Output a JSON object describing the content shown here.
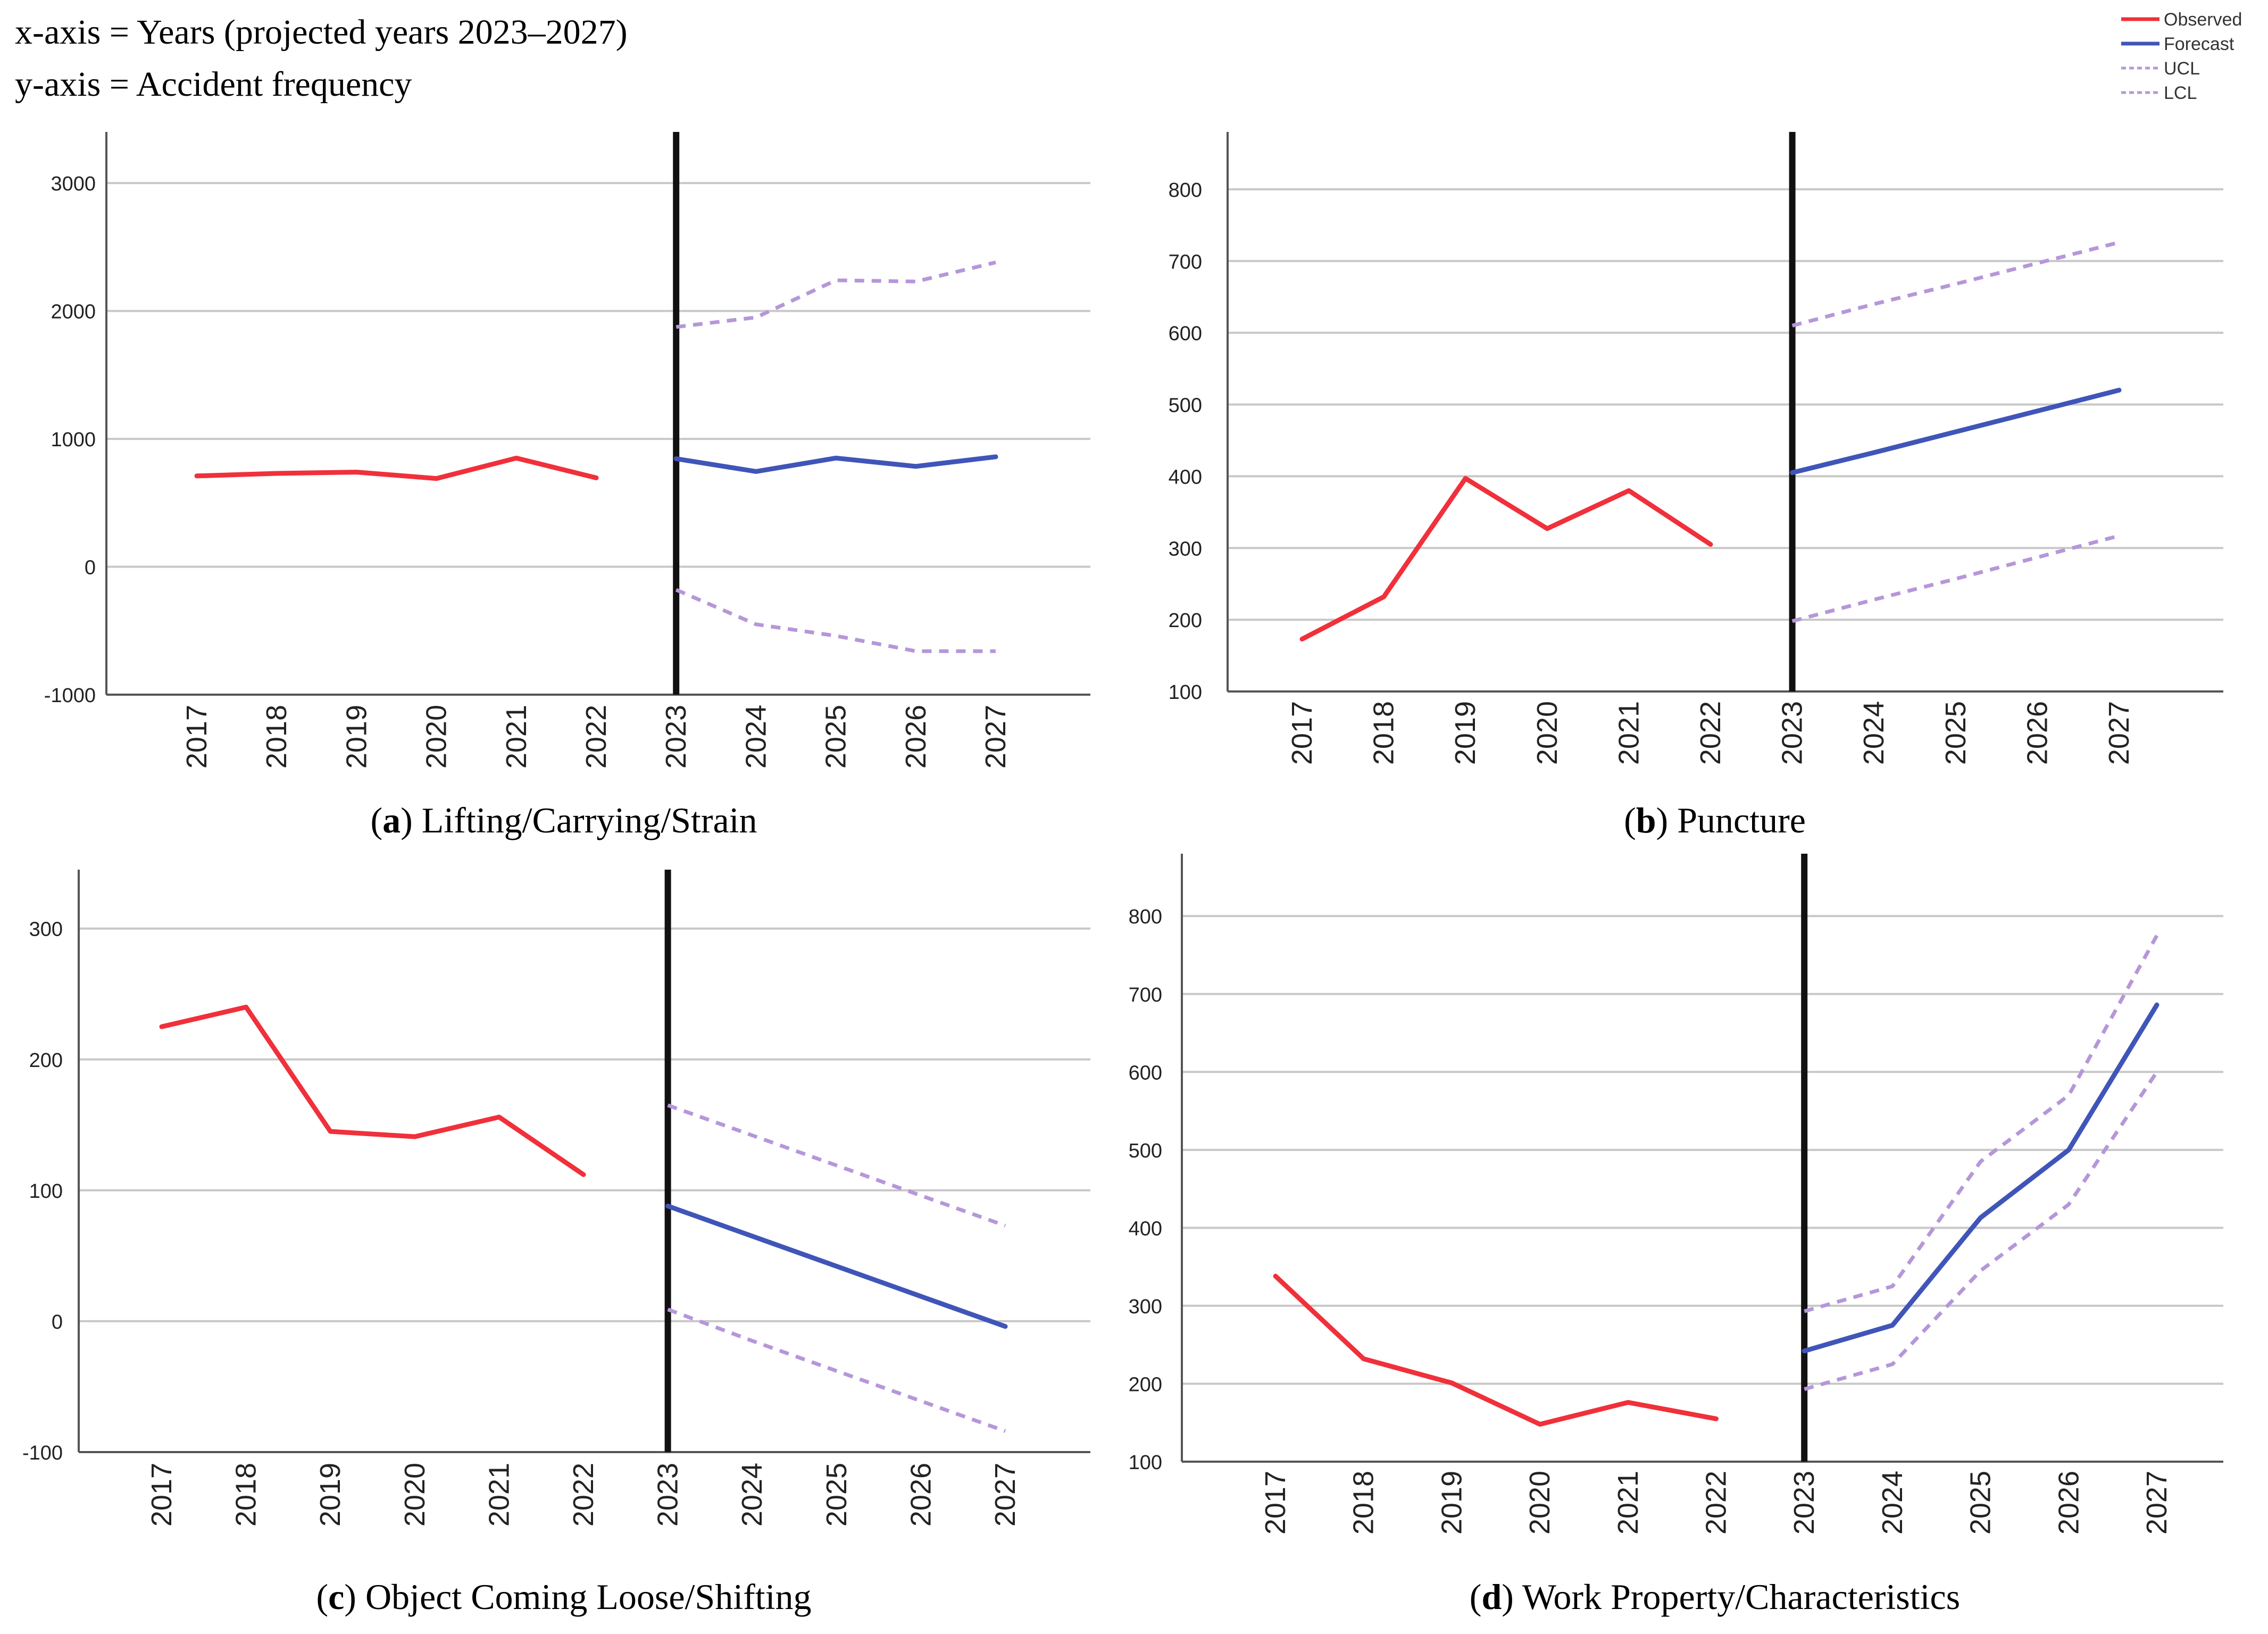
{
  "header": {
    "xaxis_note": "x-axis = Years (projected years 2023–2027)",
    "yaxis_note": "y-axis = Accident frequency"
  },
  "legend": {
    "placement": "top-right",
    "items": [
      {
        "label": "Observed",
        "color": "#f0303a",
        "style": "solid"
      },
      {
        "label": "Forecast",
        "color": "#4055b8",
        "style": "solid"
      },
      {
        "label": "UCL",
        "color": "#b597d9",
        "style": "dashed"
      },
      {
        "label": "LCL",
        "color": "#b597d9",
        "style": "dashed"
      }
    ]
  },
  "colors": {
    "observed": "#f0303a",
    "forecast": "#4055b8",
    "limits": "#b597d9",
    "divider": "#111111",
    "grid": "#c8c8c8",
    "axis": "#555555"
  },
  "chart_data": [
    {
      "type": "line",
      "caption_letter": "(a)",
      "caption_text": "Lifting/Carrying/Strain",
      "x": [
        "2017",
        "2018",
        "2019",
        "2020",
        "2021",
        "2022",
        "2023",
        "2024",
        "2025",
        "2026",
        "2027"
      ],
      "divider_at": "2023",
      "ylim": [
        -1000,
        3400
      ],
      "yticks": [
        -1000,
        0,
        1000,
        2000,
        3000
      ],
      "ytick_labels": [
        "-1000",
        "0",
        "1000",
        "2000",
        "3000"
      ],
      "grid": true,
      "series": [
        {
          "role": "observed",
          "x": [
            "2017",
            "2018",
            "2019",
            "2020",
            "2021",
            "2022"
          ],
          "values": [
            710,
            730,
            740,
            690,
            850,
            695
          ]
        },
        {
          "role": "forecast",
          "x": [
            "2023",
            "2024",
            "2025",
            "2026",
            "2027"
          ],
          "values": [
            845,
            745,
            850,
            785,
            860
          ]
        },
        {
          "role": "ucl",
          "x": [
            "2023",
            "2024",
            "2025",
            "2026",
            "2027"
          ],
          "values": [
            1875,
            1950,
            2240,
            2230,
            2380
          ]
        },
        {
          "role": "lcl",
          "x": [
            "2023",
            "2024",
            "2025",
            "2026",
            "2027"
          ],
          "values": [
            -180,
            -450,
            -540,
            -660,
            -660
          ]
        }
      ]
    },
    {
      "type": "line",
      "caption_letter": "(b)",
      "caption_text": "Puncture",
      "x": [
        "2017",
        "2018",
        "2019",
        "2020",
        "2021",
        "2022",
        "2023",
        "2024",
        "2025",
        "2026",
        "2027"
      ],
      "divider_at": "2023",
      "ylim": [
        100,
        880
      ],
      "yticks": [
        100,
        200,
        300,
        400,
        500,
        600,
        700,
        800
      ],
      "ytick_labels": [
        "100",
        "200",
        "300",
        "400",
        "500",
        "600",
        "700",
        "800"
      ],
      "grid": true,
      "series": [
        {
          "role": "observed",
          "x": [
            "2017",
            "2018",
            "2019",
            "2020",
            "2021",
            "2022"
          ],
          "values": [
            173,
            232,
            397,
            327,
            380,
            305
          ]
        },
        {
          "role": "forecast",
          "x": [
            "2023",
            "2024",
            "2025",
            "2026",
            "2027"
          ],
          "values": [
            405,
            433,
            462,
            491,
            520
          ]
        },
        {
          "role": "ucl",
          "x": [
            "2023",
            "2024",
            "2025",
            "2026",
            "2027"
          ],
          "values": [
            610,
            640,
            668,
            697,
            726
          ]
        },
        {
          "role": "lcl",
          "x": [
            "2023",
            "2024",
            "2025",
            "2026",
            "2027"
          ],
          "values": [
            198,
            228,
            257,
            287,
            317
          ]
        }
      ]
    },
    {
      "type": "line",
      "caption_letter": "(c)",
      "caption_text": "Object Coming Loose/Shifting",
      "x": [
        "2017",
        "2018",
        "2019",
        "2020",
        "2021",
        "2022",
        "2023",
        "2024",
        "2025",
        "2026",
        "2027"
      ],
      "divider_at": "2023",
      "ylim": [
        -100,
        345
      ],
      "yticks": [
        -100,
        0,
        100,
        200,
        300
      ],
      "ytick_labels": [
        "-100",
        "0",
        "100",
        "200",
        "300"
      ],
      "grid": true,
      "series": [
        {
          "role": "observed",
          "x": [
            "2017",
            "2018",
            "2019",
            "2020",
            "2021",
            "2022"
          ],
          "values": [
            225,
            240,
            145,
            141,
            156,
            112
          ]
        },
        {
          "role": "forecast",
          "x": [
            "2023",
            "2024",
            "2025",
            "2026",
            "2027"
          ],
          "values": [
            88,
            65,
            42,
            19,
            -4
          ]
        },
        {
          "role": "ucl",
          "x": [
            "2023",
            "2024",
            "2025",
            "2026",
            "2027"
          ],
          "values": [
            165,
            142,
            119,
            96,
            73
          ]
        },
        {
          "role": "lcl",
          "x": [
            "2023",
            "2024",
            "2025",
            "2026",
            "2027"
          ],
          "values": [
            9,
            -15,
            -38,
            -61,
            -84
          ]
        }
      ]
    },
    {
      "type": "line",
      "caption_letter": "(d)",
      "caption_text": "Work Property/Characteristics",
      "x": [
        "2017",
        "2018",
        "2019",
        "2020",
        "2021",
        "2022",
        "2023",
        "2024",
        "2025",
        "2026",
        "2027"
      ],
      "divider_at": "2023",
      "ylim": [
        100,
        880
      ],
      "yticks": [
        100,
        200,
        300,
        400,
        500,
        600,
        700,
        800
      ],
      "ytick_labels": [
        "100",
        "200",
        "300",
        "400",
        "500",
        "600",
        "700",
        "800"
      ],
      "grid": true,
      "series": [
        {
          "role": "observed",
          "x": [
            "2017",
            "2018",
            "2019",
            "2020",
            "2021",
            "2022"
          ],
          "values": [
            338,
            232,
            201,
            148,
            176,
            155
          ]
        },
        {
          "role": "forecast",
          "x": [
            "2023",
            "2024",
            "2025",
            "2026",
            "2027"
          ],
          "values": [
            242,
            275,
            413,
            500,
            686
          ]
        },
        {
          "role": "ucl",
          "x": [
            "2023",
            "2024",
            "2025",
            "2026",
            "2027"
          ],
          "values": [
            293,
            325,
            485,
            570,
            775
          ]
        },
        {
          "role": "lcl",
          "x": [
            "2023",
            "2024",
            "2025",
            "2026",
            "2027"
          ],
          "values": [
            193,
            225,
            345,
            430,
            600
          ]
        }
      ]
    }
  ]
}
